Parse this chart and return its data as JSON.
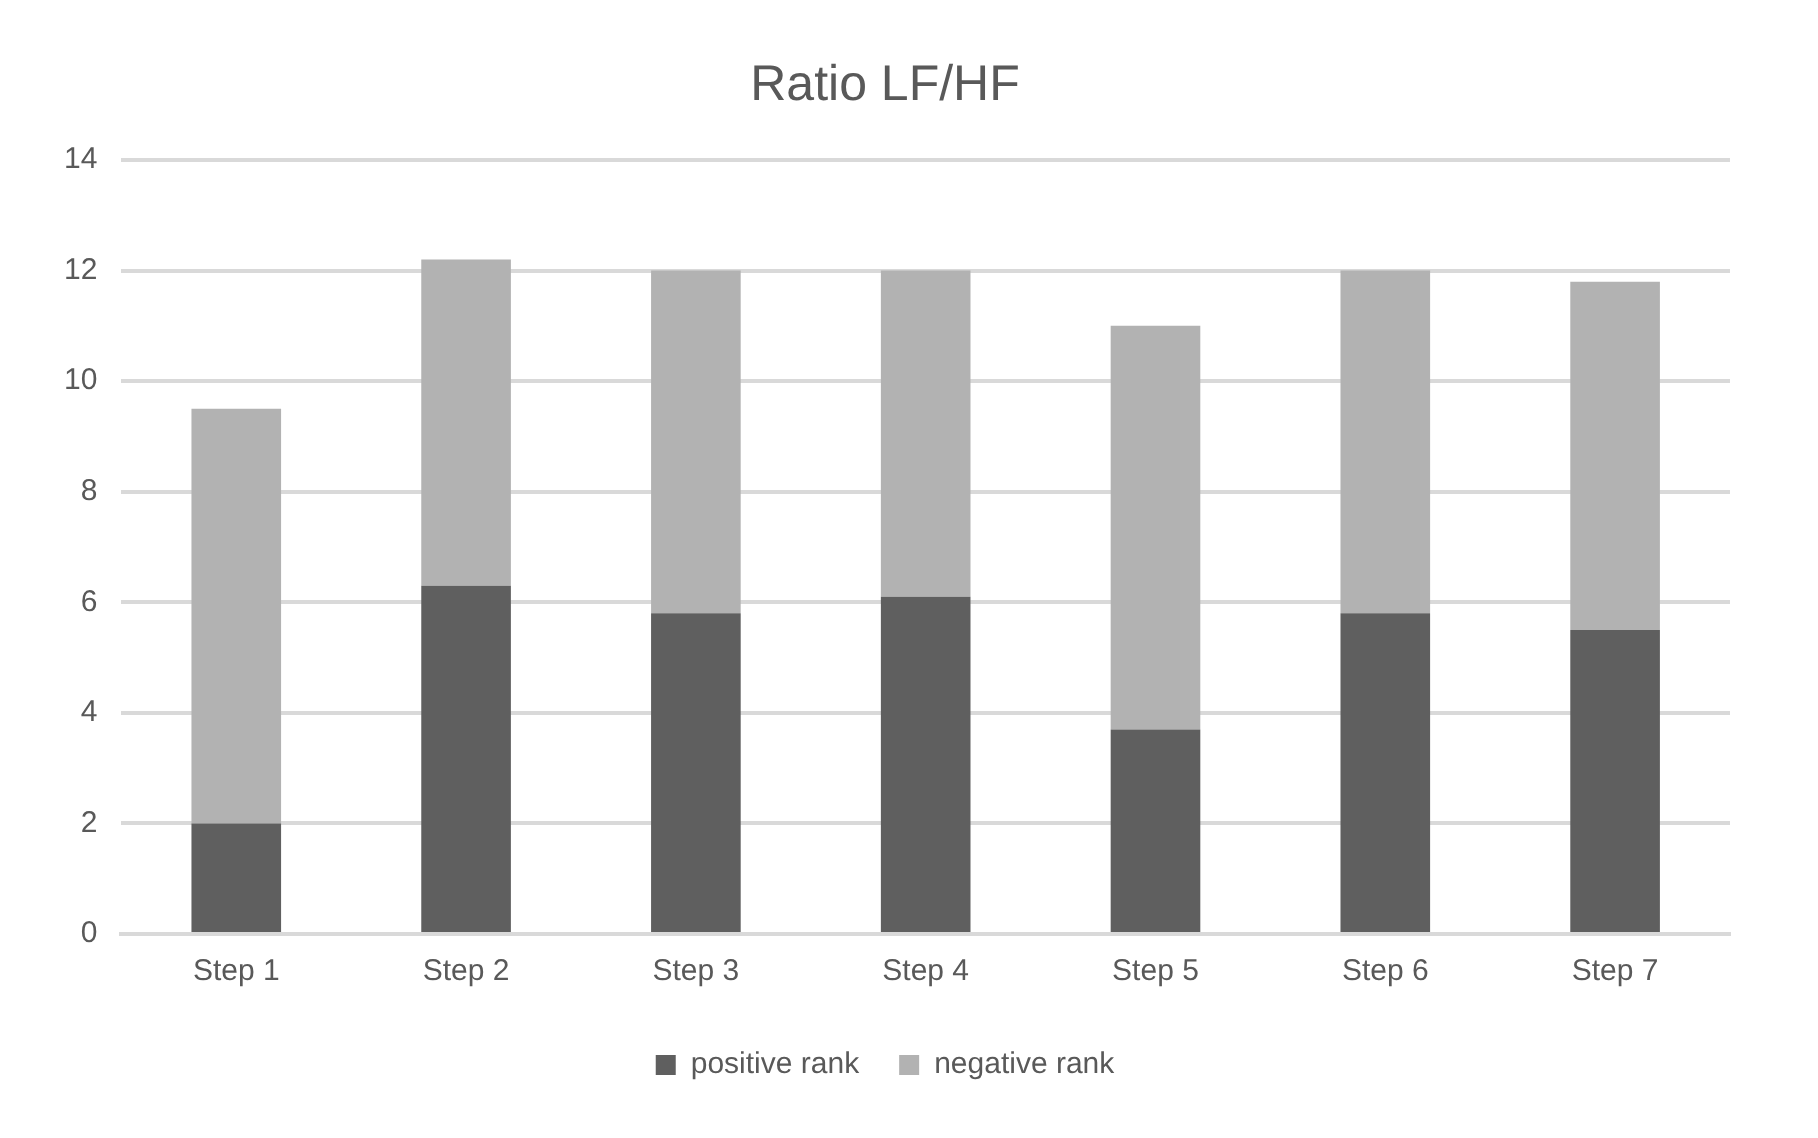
{
  "chart_data": {
    "type": "bar",
    "title": "Ratio LF/HF",
    "stacked": true,
    "categories": [
      "Step 1",
      "Step 2",
      "Step 3",
      "Step 4",
      "Step 5",
      "Step 6",
      "Step 7"
    ],
    "series": [
      {
        "name": "positive rank",
        "color": "#5f5f5f",
        "values": [
          2,
          6.3,
          5.8,
          6.1,
          3.7,
          5.8,
          5.5
        ]
      },
      {
        "name": "negative rank",
        "color": "#b2b2b2",
        "values": [
          7.5,
          5.9,
          6.2,
          5.9,
          7.3,
          6.2,
          6.3
        ]
      }
    ],
    "ylim": [
      0,
      14
    ],
    "yticks": [
      0,
      2,
      4,
      6,
      8,
      10,
      12,
      14
    ],
    "grid": "y",
    "legend": "bottom"
  }
}
